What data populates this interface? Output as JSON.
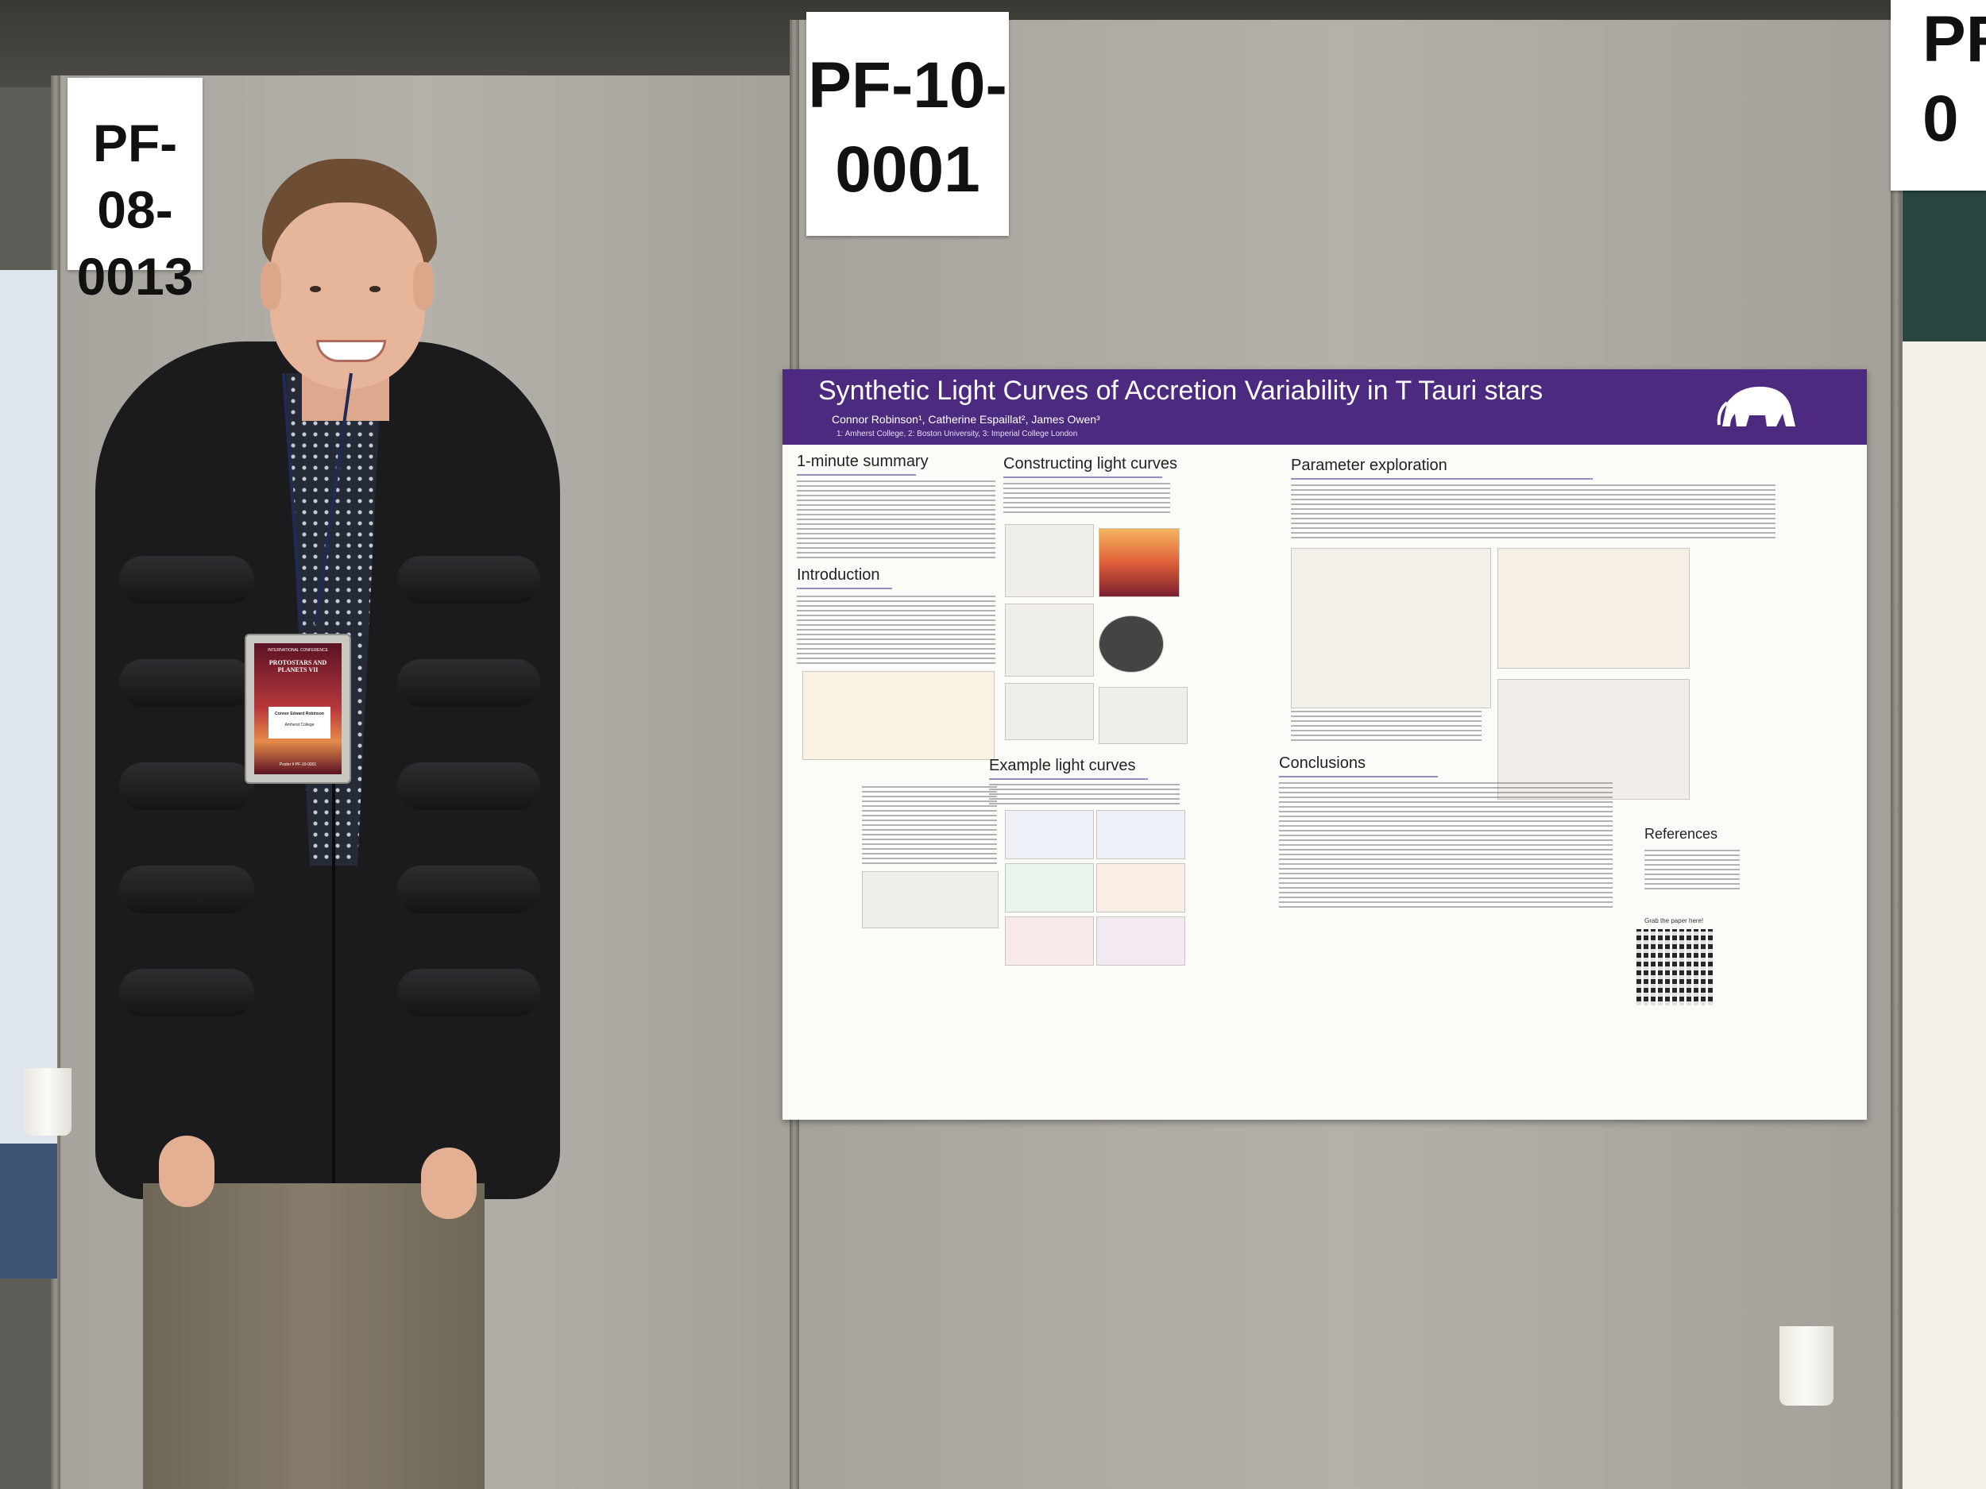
{
  "scene": {
    "description_colors": {
      "poster_header": "#4b2a7f",
      "board": "#b3b1a9",
      "jacket": "#1b1b1d",
      "pants": "#857c6a"
    }
  },
  "boards": {
    "left_label": "PF-08-\n0013",
    "left_label_line1": "PF-08-",
    "left_label_line2": "0013",
    "mid_label_line1": "PF-10-",
    "mid_label_line2": "0001",
    "right_label_line1": "PF",
    "right_label_line2": "0"
  },
  "poster": {
    "title": "Synthetic Light Curves of Accretion Variability in T Tauri stars",
    "authors": "Connor Robinson¹, Catherine Espaillat², James Owen³",
    "affiliations": "1: Amherst College, 2: Boston University, 3: Imperial College London",
    "sections": {
      "summary": "1-minute summary",
      "introduction": "Introduction",
      "constructing": "Constructing light curves",
      "example": "Example light curves",
      "parameter": "Parameter exploration",
      "conclusions": "Conclusions",
      "references": "References"
    },
    "qr_caption": "Grab the paper here!"
  },
  "badge": {
    "conference_line1": "INTERNATIONAL CONFERENCE",
    "conference_line2": "PROTOSTARS AND PLANETS VII",
    "name": "Connor Edward Robinson",
    "org": "Amherst College",
    "footer": "Poster # PF-10-0001"
  }
}
